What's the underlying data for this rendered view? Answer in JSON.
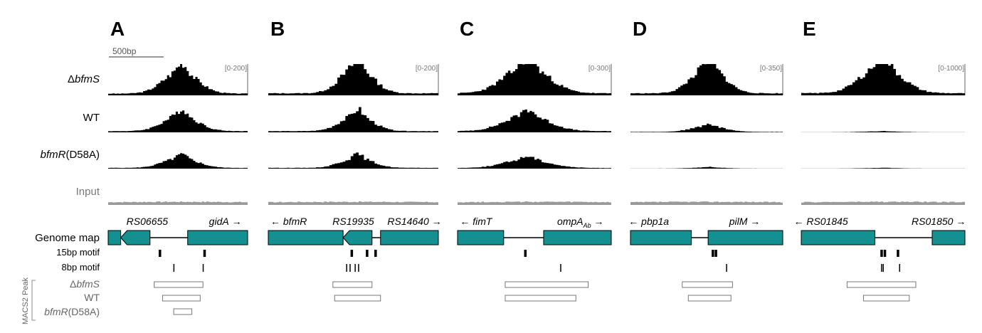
{
  "scale_bar": {
    "label": "500bp"
  },
  "row_labels": {
    "dbfms_prefix": "Δ",
    "dbfms_italic": "bfmS",
    "wt": "WT",
    "d58a_italic": "bfmR",
    "d58a_rest": "(D58A)",
    "input": "Input",
    "genome_map": "Genome map",
    "motif15": "15bp motif",
    "motif8": "8bp motif",
    "macs2": "MACS2 Peak"
  },
  "peak_labels": {
    "dbfms_prefix": "Δ",
    "dbfms_italic": "bfmS",
    "wt": "WT",
    "d58a_italic": "bfmR",
    "d58a_rest": "(D58A)"
  },
  "colors": {
    "gene_fill": "#13908f",
    "signal": "#000000",
    "input": "#9a9a9a",
    "peak_stroke": "#777777"
  },
  "panels": [
    {
      "letter": "A",
      "range": "[0-200]",
      "genes": [
        {
          "text": "RS06655",
          "arrow": ""
        },
        {
          "text": "gidA",
          "arrow": "→"
        }
      ]
    },
    {
      "letter": "B",
      "range": "[0-200]",
      "genes": [
        {
          "text": "bfmR",
          "arrow": "←"
        },
        {
          "text": "RS19935",
          "arrow": ""
        },
        {
          "text": "RS14640",
          "arrow": "→"
        }
      ]
    },
    {
      "letter": "C",
      "range": "[0-300]",
      "genes": [
        {
          "text": "fimT",
          "arrow": "←"
        },
        {
          "text": "ompA",
          "sub": "Ab",
          "arrow": "→"
        }
      ]
    },
    {
      "letter": "D",
      "range": "[0-350]",
      "genes": [
        {
          "text": "pbp1a",
          "arrow": "←"
        },
        {
          "text": "pilM",
          "arrow": "→"
        }
      ]
    },
    {
      "letter": "E",
      "range": "[0-1000]",
      "genes": [
        {
          "text": "RS01845",
          "arrow": "←"
        },
        {
          "text": "RS01850",
          "arrow": "→"
        }
      ]
    }
  ]
}
